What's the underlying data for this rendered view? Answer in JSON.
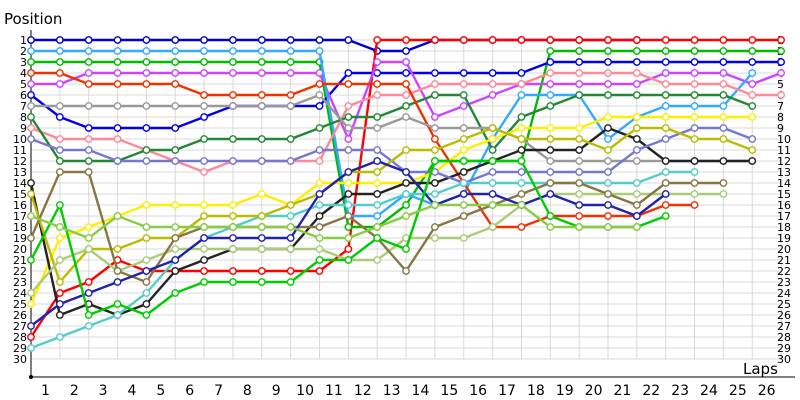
{
  "chart_data": {
    "type": "line",
    "title": "",
    "xlabel": "Laps",
    "ylabel": "Position",
    "xlim": [
      0,
      27
    ],
    "ylim": [
      1,
      30
    ],
    "y_inverted": true,
    "grid": true,
    "legend": "none",
    "x": [
      0,
      1,
      2,
      3,
      4,
      5,
      6,
      7,
      8,
      9,
      10,
      11,
      12,
      13,
      14,
      15,
      16,
      17,
      18,
      19,
      20,
      21,
      22,
      23,
      24,
      25,
      26
    ],
    "x_ticks": [
      "1",
      "2",
      "3",
      "4",
      "5",
      "6",
      "7",
      "8",
      "9",
      "10",
      "11",
      "12",
      "13",
      "14",
      "15",
      "16",
      "17",
      "18",
      "19",
      "20",
      "21",
      "22",
      "23",
      "24",
      "25",
      "26"
    ],
    "y_ticks": [
      "1",
      "2",
      "3",
      "4",
      "5",
      "6",
      "7",
      "8",
      "9",
      "10",
      "11",
      "12",
      "13",
      "14",
      "15",
      "16",
      "17",
      "18",
      "19",
      "20",
      "21",
      "22",
      "23",
      "24",
      "25",
      "26",
      "27",
      "28",
      "29",
      "30"
    ],
    "series": [
      {
        "color": "#0000cc",
        "values": [
          1,
          1,
          1,
          1,
          1,
          1,
          1,
          1,
          1,
          1,
          1,
          1,
          2,
          2,
          1,
          1,
          1,
          1,
          1,
          1,
          1,
          1,
          null,
          null,
          null,
          null,
          null
        ]
      },
      {
        "color": "#ff0000",
        "values": [
          28,
          24,
          23,
          21,
          22,
          22,
          22,
          22,
          22,
          22,
          22,
          20,
          1,
          1,
          1,
          1,
          1,
          1,
          1,
          1,
          1,
          1,
          1,
          1,
          1,
          1,
          1
        ]
      },
      {
        "color": "#00bb00",
        "values": [
          3,
          3,
          3,
          3,
          3,
          3,
          3,
          3,
          3,
          3,
          3,
          18,
          18,
          16,
          12,
          12,
          12,
          12,
          2,
          2,
          2,
          2,
          2,
          2,
          2,
          2,
          2
        ]
      },
      {
        "color": "#0000ee",
        "values": [
          6,
          8,
          9,
          9,
          9,
          9,
          8,
          7,
          7,
          7,
          7,
          4,
          4,
          4,
          4,
          4,
          4,
          4,
          3,
          3,
          3,
          3,
          3,
          3,
          3,
          3,
          3
        ]
      },
      {
        "color": "#cc44ff",
        "values": [
          5,
          5,
          4,
          4,
          4,
          4,
          4,
          4,
          4,
          4,
          4,
          10,
          3,
          3,
          8,
          7,
          6,
          5,
          5,
          5,
          5,
          5,
          4,
          4,
          4,
          5,
          4
        ]
      },
      {
        "color": "#33aaff",
        "values": [
          2,
          2,
          2,
          2,
          2,
          2,
          2,
          2,
          2,
          2,
          2,
          17,
          17,
          15,
          16,
          15,
          10,
          6,
          6,
          6,
          10,
          8,
          7,
          7,
          7,
          4,
          null
        ]
      },
      {
        "color": "#ff8899",
        "values": [
          9,
          10,
          10,
          10,
          11,
          12,
          13,
          12,
          12,
          12,
          12,
          7,
          6,
          6,
          5,
          5,
          5,
          5,
          4,
          4,
          4,
          4,
          5,
          5,
          5,
          6,
          6
        ]
      },
      {
        "color": "#228833",
        "values": [
          8,
          12,
          12,
          12,
          11,
          11,
          10,
          10,
          10,
          10,
          9,
          8,
          8,
          7,
          6,
          6,
          11,
          8,
          7,
          6,
          6,
          6,
          6,
          6,
          6,
          7,
          null
        ]
      },
      {
        "color": "#ee3300",
        "values": [
          4,
          4,
          5,
          5,
          5,
          5,
          6,
          6,
          6,
          6,
          5,
          5,
          5,
          5,
          10,
          14,
          18,
          18,
          17,
          17,
          17,
          17,
          16,
          16,
          null,
          null,
          null
        ]
      },
      {
        "color": "#ffee00",
        "values": [
          25,
          19,
          18,
          17,
          16,
          16,
          16,
          16,
          15,
          16,
          14,
          14,
          14,
          14,
          13,
          11,
          10,
          9,
          9,
          9,
          8,
          8,
          8,
          8,
          8,
          8,
          null
        ]
      },
      {
        "color": "#999999",
        "values": [
          7,
          7,
          7,
          7,
          7,
          7,
          7,
          7,
          7,
          7,
          6,
          9,
          9,
          8,
          9,
          9,
          9,
          10,
          12,
          12,
          12,
          12,
          12,
          12,
          12,
          12,
          null
        ]
      },
      {
        "color": "#222222",
        "values": [
          14,
          26,
          25,
          26,
          25,
          22,
          21,
          20,
          20,
          20,
          17,
          15,
          15,
          14,
          14,
          13,
          12,
          11,
          11,
          11,
          9,
          10,
          12,
          12,
          12,
          12,
          null
        ]
      },
      {
        "color": "#7777cc",
        "values": [
          10,
          11,
          11,
          12,
          12,
          12,
          12,
          12,
          12,
          12,
          11,
          11,
          11,
          13,
          13,
          14,
          13,
          13,
          13,
          13,
          13,
          11,
          10,
          9,
          9,
          10,
          null
        ]
      },
      {
        "color": "#55cccc",
        "values": [
          29,
          28,
          27,
          26,
          24,
          21,
          19,
          18,
          17,
          17,
          16,
          16,
          16,
          15,
          15,
          14,
          14,
          14,
          14,
          14,
          14,
          14,
          13,
          13,
          null,
          null,
          null
        ]
      },
      {
        "color": "#bbbb00",
        "values": [
          15,
          23,
          20,
          20,
          19,
          19,
          17,
          17,
          17,
          16,
          15,
          13,
          13,
          11,
          11,
          10,
          9,
          10,
          10,
          10,
          11,
          9,
          9,
          10,
          10,
          11,
          null
        ]
      },
      {
        "color": "#aacc77",
        "values": [
          24,
          21,
          20,
          22,
          21,
          20,
          20,
          20,
          20,
          20,
          20,
          21,
          21,
          19,
          19,
          19,
          18,
          16,
          15,
          15,
          15,
          15,
          15,
          15,
          15,
          null,
          null
        ]
      },
      {
        "color": "#887744",
        "values": [
          19,
          13,
          13,
          22,
          23,
          19,
          18,
          18,
          18,
          18,
          18,
          17,
          19,
          22,
          18,
          17,
          16,
          15,
          14,
          14,
          15,
          16,
          14,
          14,
          14,
          null,
          null
        ]
      },
      {
        "color": "#2222aa",
        "values": [
          27,
          25,
          24,
          23,
          22,
          21,
          19,
          19,
          19,
          19,
          15,
          13,
          12,
          13,
          16,
          15,
          15,
          16,
          15,
          16,
          16,
          17,
          15,
          null,
          null,
          null,
          null
        ]
      },
      {
        "color": "#00cc00",
        "values": [
          21,
          16,
          26,
          25,
          26,
          24,
          23,
          23,
          23,
          23,
          21,
          21,
          19,
          20,
          12,
          12,
          12,
          12,
          17,
          18,
          18,
          18,
          17,
          null,
          null,
          null,
          null
        ]
      },
      {
        "color": "#88cc44",
        "values": [
          17,
          18,
          19,
          17,
          18,
          18,
          18,
          18,
          18,
          18,
          19,
          19,
          18,
          17,
          16,
          16,
          16,
          16,
          18,
          18,
          18,
          18,
          null,
          null,
          null,
          null,
          null
        ]
      }
    ]
  }
}
